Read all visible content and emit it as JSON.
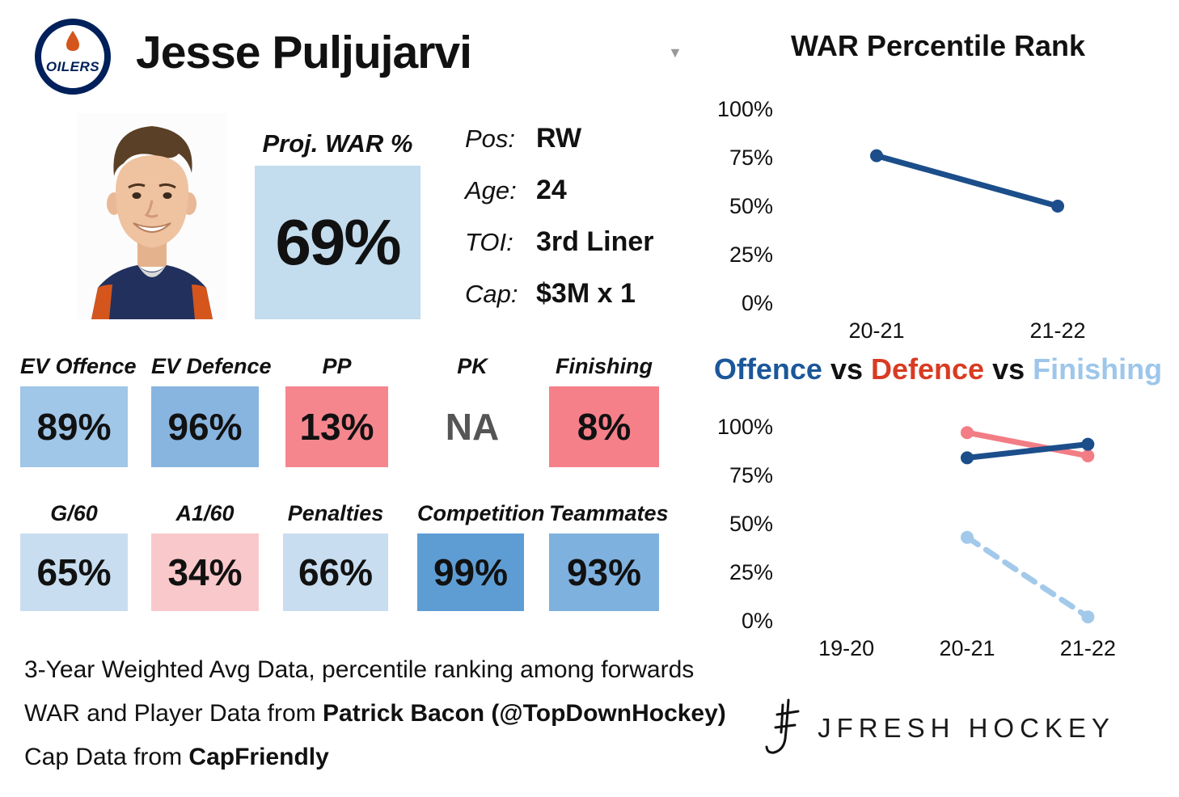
{
  "header": {
    "team_name": "OILERS",
    "player_name": "Jesse Puljujarvi",
    "dropdown_glyph": "▼"
  },
  "proj_war": {
    "label": "Proj. WAR %",
    "value": "69%",
    "bg": "#c3dcee"
  },
  "bio": {
    "rows": [
      {
        "label": "Pos:",
        "value": "RW"
      },
      {
        "label": "Age:",
        "value": "24"
      },
      {
        "label": "TOI:",
        "value": "3rd Liner"
      },
      {
        "label": "Cap:",
        "value": "$3M x 1"
      }
    ]
  },
  "stats": {
    "row1": [
      {
        "label": "EV Offence",
        "value": "89%",
        "bg": "#a0c6e8",
        "fg": "#111111"
      },
      {
        "label": "EV Defence",
        "value": "96%",
        "bg": "#88b5e0",
        "fg": "#111111"
      },
      {
        "label": "PP",
        "value": "13%",
        "bg": "#f5868e",
        "fg": "#111111"
      },
      {
        "label": "PK",
        "value": "NA",
        "bg": "transparent",
        "fg": "#555555"
      },
      {
        "label": "Finishing",
        "value": "8%",
        "bg": "#f5808a",
        "fg": "#111111"
      }
    ],
    "row2": [
      {
        "label": "G/60",
        "value": "65%",
        "bg": "#c8ddef",
        "fg": "#111111"
      },
      {
        "label": "A1/60",
        "value": "34%",
        "bg": "#f9c8cb",
        "fg": "#111111"
      },
      {
        "label": "Penalties",
        "value": "66%",
        "bg": "#c8ddef",
        "fg": "#111111"
      },
      {
        "label": "Competition",
        "value": "99%",
        "bg": "#5e9dd4",
        "fg": "#111111"
      },
      {
        "label": "Teammates",
        "value": "93%",
        "bg": "#7fb1de",
        "fg": "#111111"
      }
    ]
  },
  "footnote": {
    "line1": "3-Year Weighted Avg Data, percentile ranking among forwards",
    "line2_normal": "WAR and Player Data from ",
    "line2_bold": "Patrick Bacon (@TopDownHockey)",
    "line3_normal": "Cap Data from ",
    "line3_bold": "CapFriendly"
  },
  "vs_title": {
    "parts": [
      {
        "text": "Offence",
        "color": "#1b5799"
      },
      {
        "text": " vs ",
        "color": "#111111"
      },
      {
        "text": "Defence",
        "color": "#d93b22"
      },
      {
        "text": " vs ",
        "color": "#111111"
      },
      {
        "text": "Finishing",
        "color": "#9dc6ea"
      }
    ]
  },
  "chart_data": [
    {
      "type": "line",
      "title": "WAR Percentile Rank",
      "categories": [
        "20-21",
        "21-22"
      ],
      "series": [
        {
          "name": "WAR percentile",
          "color": "#1b4e8a",
          "dashed": false,
          "values": [
            76,
            50
          ]
        }
      ],
      "ylim": [
        0,
        100
      ],
      "yticks": [
        100,
        75,
        50,
        25,
        0
      ],
      "grid": false,
      "legend": "none"
    },
    {
      "type": "line",
      "title": "Offence vs Defence vs Finishing",
      "categories": [
        "19-20",
        "20-21",
        "21-22"
      ],
      "series": [
        {
          "name": "Finishing",
          "color": "#a3c9ea",
          "dashed": true,
          "values": [
            null,
            43,
            2
          ]
        },
        {
          "name": "Defence",
          "color": "#f27d85",
          "dashed": false,
          "values": [
            null,
            97,
            85
          ]
        },
        {
          "name": "Offence",
          "color": "#1b4e8a",
          "dashed": false,
          "values": [
            null,
            84,
            91
          ]
        }
      ],
      "ylim": [
        0,
        100
      ],
      "yticks": [
        100,
        75,
        50,
        25,
        0
      ],
      "grid": false,
      "legend": "none"
    }
  ],
  "brand": {
    "name": "JFRESH HOCKEY"
  }
}
